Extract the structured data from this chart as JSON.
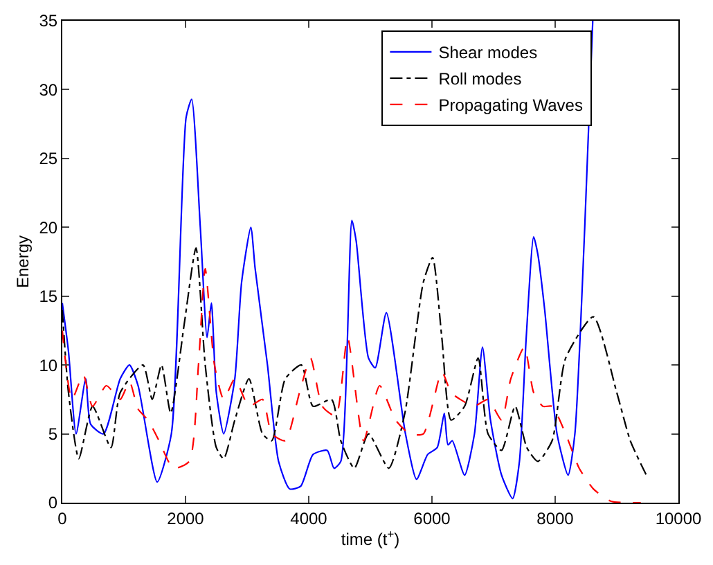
{
  "chart_data": {
    "type": "line",
    "xlabel": "time (t$^{+}$)",
    "ylabel": "Energy",
    "xlim": [
      0,
      10000
    ],
    "ylim": [
      0,
      35
    ],
    "xticks": [
      0,
      2000,
      4000,
      6000,
      8000,
      10000
    ],
    "yticks": [
      0,
      5,
      10,
      15,
      20,
      25,
      30,
      35
    ],
    "legend": "top right",
    "marker": "none",
    "series": [
      {
        "name": "Shear modes",
        "color": "#0000ff",
        "line_style": "solid",
        "x": [
          0,
          100,
          224,
          380,
          460,
          670,
          940,
          1090,
          1230,
          1540,
          1770,
          2010,
          2100,
          2240,
          2350,
          2420,
          2500,
          2620,
          2800,
          2910,
          3060,
          3130,
          3330,
          3510,
          3690,
          3870,
          4070,
          4300,
          4410,
          4520,
          4700,
          4770,
          4970,
          5080,
          5260,
          5570,
          5750,
          5930,
          6085,
          6200,
          6260,
          6330,
          6530,
          6690,
          6820,
          6950,
          7130,
          7310,
          7420,
          7530,
          7650,
          7720,
          7830,
          8030,
          8210,
          8320,
          8480,
          8610
        ],
        "values": [
          14.5,
          11,
          5,
          9,
          5.7,
          5,
          9,
          10,
          8.5,
          1.5,
          5,
          28,
          29.3,
          20,
          12,
          14.5,
          8,
          5,
          9,
          16,
          20,
          17,
          10,
          3,
          1,
          1.2,
          3.5,
          3.8,
          2.5,
          3,
          20.5,
          19,
          10.5,
          9.8,
          13.8,
          5,
          1.7,
          3.5,
          4,
          6.5,
          4.2,
          4.5,
          2,
          5,
          11.3,
          6,
          2,
          0.3,
          3,
          12,
          19.3,
          18,
          14,
          5,
          2,
          5,
          20,
          35
        ]
      },
      {
        "name": "Roll modes",
        "color": "#000000",
        "line_style": "dashdot",
        "x": [
          0,
          100,
          268,
          492,
          790,
          940,
          1310,
          1460,
          1610,
          1760,
          1980,
          2170,
          2320,
          2500,
          2620,
          2800,
          3030,
          3250,
          3400,
          3620,
          3880,
          4070,
          4370,
          4520,
          4740,
          4970,
          5300,
          5560,
          5860,
          6010,
          6160,
          6310,
          6530,
          6750,
          6910,
          7130,
          7350,
          7540,
          7720,
          7950,
          8170,
          8620,
          9000,
          9220,
          9480
        ],
        "values": [
          14,
          8,
          3.2,
          7,
          4,
          8,
          10,
          7.5,
          10,
          6.5,
          13,
          18.5,
          10,
          4,
          3.2,
          6,
          9,
          5,
          4.5,
          9,
          10,
          7,
          7.5,
          4.5,
          2.5,
          5,
          2.5,
          6.5,
          16,
          17.8,
          12,
          6,
          7,
          10.5,
          5,
          3.8,
          7,
          4,
          3,
          4.5,
          10.5,
          13.5,
          8,
          4.5,
          2
        ]
      },
      {
        "name": "Propagating Waves",
        "color": "#ff0000",
        "line_style": "dashed",
        "x": [
          0,
          156,
          340,
          490,
          715,
          940,
          1090,
          1230,
          1390,
          1570,
          1800,
          2060,
          2210,
          2320,
          2470,
          2620,
          2800,
          3030,
          3250,
          3400,
          3620,
          3850,
          4030,
          4220,
          4440,
          4630,
          4890,
          5150,
          5410,
          5640,
          5860,
          6160,
          6310,
          6460,
          6680,
          6910,
          7130,
          7280,
          7500,
          7650,
          7800,
          7950,
          8170,
          8390,
          8620,
          8910,
          9390
        ],
        "values": [
          12.5,
          7.5,
          9.3,
          7,
          8.5,
          7.5,
          8.8,
          6.8,
          6,
          4.5,
          2.5,
          3,
          10,
          17,
          10,
          7.5,
          9,
          7,
          7.5,
          5,
          4.5,
          8,
          10.5,
          7,
          6.3,
          12,
          4.5,
          8.5,
          6,
          5,
          5,
          9.5,
          8,
          7.5,
          7,
          7.5,
          6,
          9,
          11.3,
          8,
          7,
          7,
          5,
          2.5,
          1,
          0.1,
          0
        ]
      }
    ]
  }
}
